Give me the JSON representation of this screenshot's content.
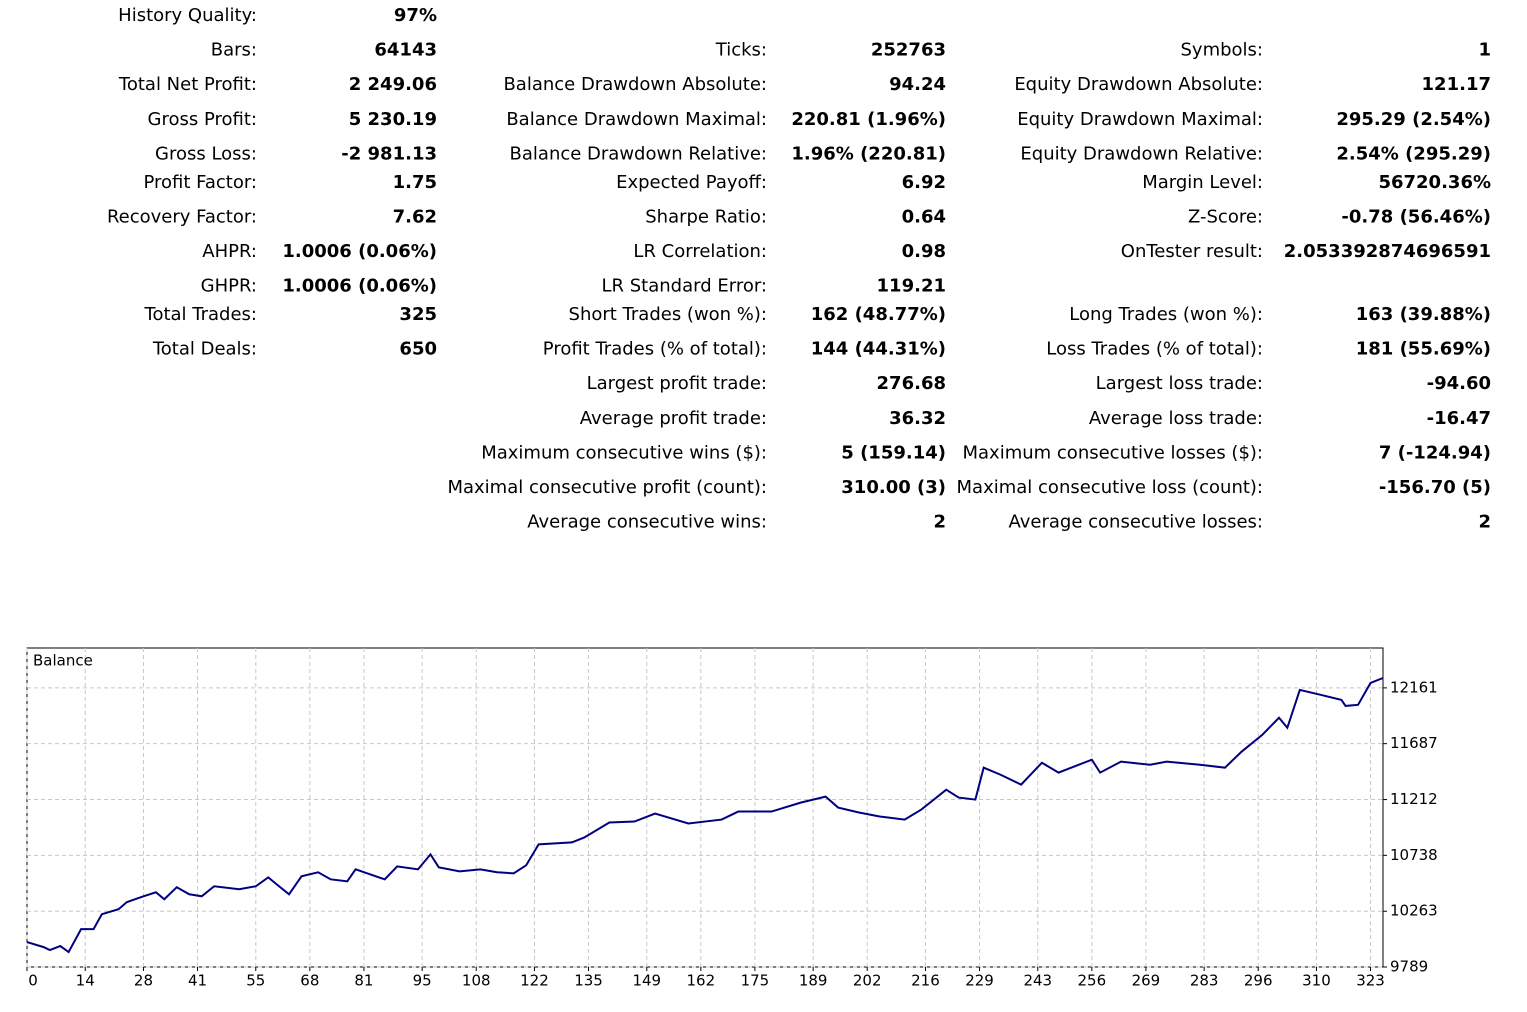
{
  "stats": {
    "groups": [
      [
        [
          [
            "History Quality:",
            "97%"
          ],
          null,
          null
        ],
        [
          [
            "Bars:",
            "64143"
          ],
          [
            "Ticks:",
            "252763"
          ],
          [
            "Symbols:",
            "1"
          ]
        ],
        [
          [
            "Total Net Profit:",
            "2 249.06"
          ],
          [
            "Balance Drawdown Absolute:",
            "94.24"
          ],
          [
            "Equity Drawdown Absolute:",
            "121.17"
          ]
        ],
        [
          [
            "Gross Profit:",
            "5 230.19"
          ],
          [
            "Balance Drawdown Maximal:",
            "220.81 (1.96%)"
          ],
          [
            "Equity Drawdown Maximal:",
            "295.29 (2.54%)"
          ]
        ],
        [
          [
            "Gross Loss:",
            "-2 981.13"
          ],
          [
            "Balance Drawdown Relative:",
            "1.96% (220.81)"
          ],
          [
            "Equity Drawdown Relative:",
            "2.54% (295.29)"
          ]
        ]
      ],
      [
        [
          [
            "Profit Factor:",
            "1.75"
          ],
          [
            "Expected Payoff:",
            "6.92"
          ],
          [
            "Margin Level:",
            "56720.36%"
          ]
        ],
        [
          [
            "Recovery Factor:",
            "7.62"
          ],
          [
            "Sharpe Ratio:",
            "0.64"
          ],
          [
            "Z-Score:",
            "-0.78 (56.46%)"
          ]
        ],
        [
          [
            "AHPR:",
            "1.0006 (0.06%)"
          ],
          [
            "LR Correlation:",
            "0.98"
          ],
          [
            "OnTester result:",
            "2.053392874696591"
          ]
        ],
        [
          [
            "GHPR:",
            "1.0006 (0.06%)"
          ],
          [
            "LR Standard Error:",
            "119.21"
          ],
          null
        ]
      ],
      [
        [
          [
            "Total Trades:",
            "325"
          ],
          [
            "Short Trades (won %):",
            "162 (48.77%)"
          ],
          [
            "Long Trades (won %):",
            "163 (39.88%)"
          ]
        ],
        [
          [
            "Total Deals:",
            "650"
          ],
          [
            "Profit Trades (% of total):",
            "144 (44.31%)"
          ],
          [
            "Loss Trades (% of total):",
            "181 (55.69%)"
          ]
        ],
        [
          null,
          [
            "Largest profit trade:",
            "276.68"
          ],
          [
            "Largest loss trade:",
            "-94.60"
          ]
        ],
        [
          null,
          [
            "Average profit trade:",
            "36.32"
          ],
          [
            "Average loss trade:",
            "-16.47"
          ]
        ],
        [
          null,
          [
            "Maximum consecutive wins ($):",
            "5 (159.14)"
          ],
          [
            "Maximum consecutive losses ($):",
            "7 (-124.94)"
          ]
        ],
        [
          null,
          [
            "Maximal consecutive profit (count):",
            "310.00 (3)"
          ],
          [
            "Maximal consecutive loss (count):",
            "-156.70 (5)"
          ]
        ],
        [
          null,
          [
            "Average consecutive wins:",
            "2"
          ],
          [
            "Average consecutive losses:",
            "2"
          ]
        ]
      ]
    ]
  },
  "chart_data": {
    "type": "line",
    "color": "#000080",
    "grid": true,
    "xlim": [
      0,
      326
    ],
    "ylim": [
      9789,
      12500
    ],
    "xticks": [
      0,
      14,
      28,
      41,
      55,
      68,
      81,
      95,
      108,
      122,
      135,
      149,
      162,
      175,
      189,
      202,
      216,
      229,
      243,
      256,
      269,
      283,
      296,
      310,
      323
    ],
    "yticks": [
      9789,
      10263,
      10738,
      11212,
      11687,
      12161
    ],
    "x": [
      0,
      4,
      5.5,
      8,
      10,
      13,
      16,
      18,
      22,
      24,
      26,
      28,
      31,
      33,
      36,
      39,
      42,
      45,
      51,
      55,
      58,
      60,
      63,
      66,
      70,
      73,
      77,
      79,
      86,
      89,
      94,
      97,
      99,
      104,
      109,
      113,
      117,
      120,
      123,
      131,
      134,
      140,
      146,
      151,
      159,
      167,
      171,
      179,
      186,
      192,
      195,
      200,
      205,
      211,
      215,
      221,
      224,
      228,
      230,
      234,
      239,
      244,
      248,
      256,
      258,
      263,
      270,
      274,
      282,
      288,
      292,
      297,
      301,
      303,
      306,
      311,
      316,
      317,
      320,
      323,
      326
    ],
    "series": [
      {
        "name": "Balance",
        "values": [
          10001,
          9958,
          9933,
          9967,
          9916,
          10111,
          10111,
          10238,
          10280,
          10340,
          10365,
          10390,
          10424,
          10365,
          10467,
          10407,
          10390,
          10475,
          10450,
          10475,
          10551,
          10492,
          10407,
          10560,
          10594,
          10534,
          10517,
          10619,
          10534,
          10644,
          10619,
          10746,
          10636,
          10602,
          10619,
          10594,
          10585,
          10653,
          10831,
          10848,
          10890,
          11017,
          11025,
          11093,
          11009,
          11042,
          11110,
          11110,
          11186,
          11237,
          11144,
          11102,
          11068,
          11042,
          11127,
          11296,
          11229,
          11212,
          11483,
          11424,
          11339,
          11525,
          11441,
          11551,
          11441,
          11534,
          11508,
          11534,
          11508,
          11483,
          11619,
          11763,
          11907,
          11822,
          12144,
          12102,
          12059,
          12008,
          12017,
          12203,
          12245
        ]
      }
    ]
  }
}
